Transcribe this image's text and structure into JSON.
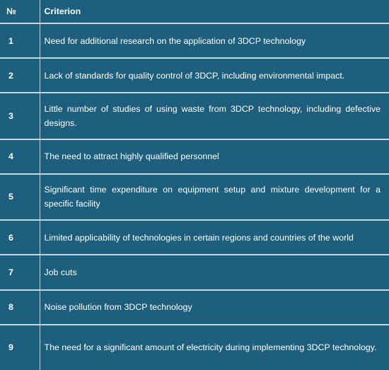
{
  "table": {
    "header": {
      "number": "№",
      "criterion": "Criterion"
    },
    "rows": [
      {
        "number": "1",
        "criterion": "Need for additional research on the application of 3DCP technology"
      },
      {
        "number": "2",
        "criterion": "Lack of standards for quality control of 3DCP, including environmental impact."
      },
      {
        "number": "3",
        "criterion": "Little number of studies of using waste from 3DCP technology, including defective designs."
      },
      {
        "number": "4",
        "criterion": "The need to attract highly qualified personnel"
      },
      {
        "number": "5",
        "criterion": "Significant time expenditure on equipment setup and mixture development for a specific facility"
      },
      {
        "number": "6",
        "criterion": "Limited applicability of technologies in certain regions and countries of the world"
      },
      {
        "number": "7",
        "criterion": "Job cuts"
      },
      {
        "number": "8",
        "criterion": "Noise pollution from 3DCP technology"
      },
      {
        "number": "9",
        "criterion": "The need for a significant amount of electricity during implementing 3DCP technology."
      }
    ]
  },
  "colors": {
    "cell_background": "#1f5f7e",
    "grid_lines": "#c2d6e0",
    "text": "#ffffff"
  }
}
